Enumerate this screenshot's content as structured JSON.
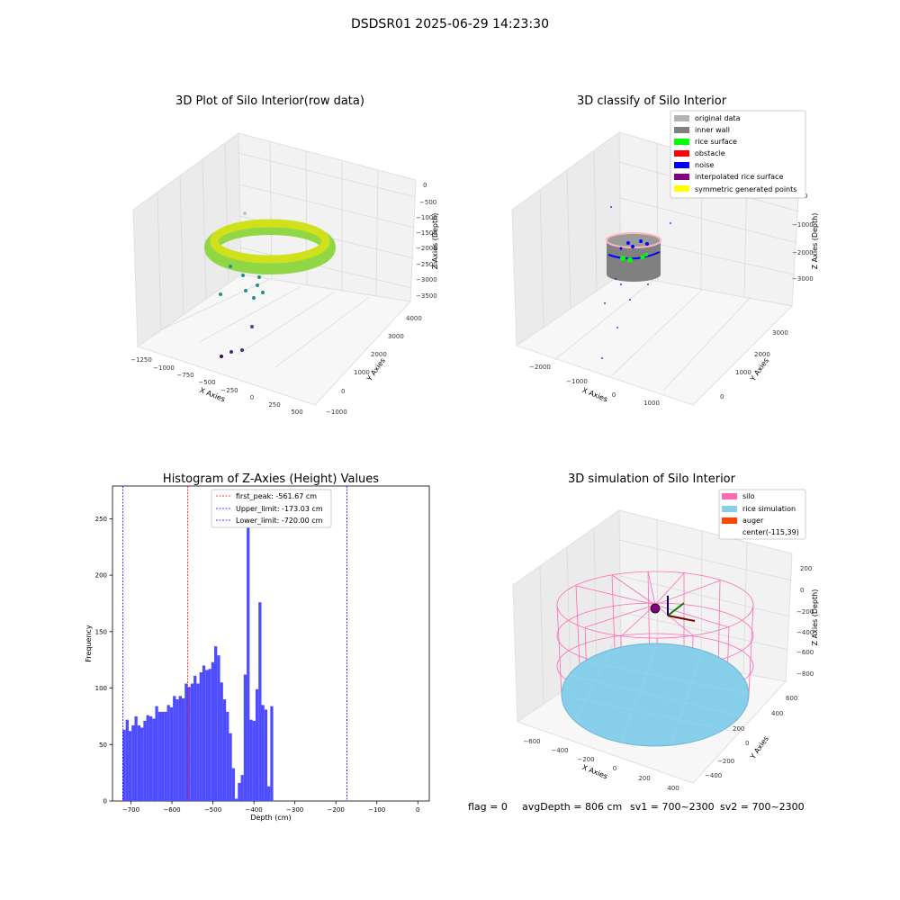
{
  "figure": {
    "suptitle": "DSDSR01 2025-06-29 14:23:30",
    "footer": {
      "flag": "flag = 0",
      "avg_depth": "avgDepth = 806 cm",
      "sv1": "sv1 = 700~2300",
      "sv2": "sv2 = 700~2300"
    }
  },
  "colors": {
    "original_data": "#b3b3b3",
    "inner_wall": "#808080",
    "rice_surface": "#00ff00",
    "obstacle": "#ff0000",
    "noise": "#0000ff",
    "interpolated_rice_surface": "#800080",
    "symmetric_generated_points": "#ffff00",
    "silo": "#ff69b4",
    "rice_simulation": "#87ceeb",
    "auger": "#ff4500",
    "histogram_bar": "#4d4dff"
  },
  "chart_data": [
    {
      "type": "scatter3d",
      "title": "3D Plot of Silo Interior(row data)",
      "xlabel": "X Axies",
      "ylabel": "Y Axies",
      "zlabel": "Z Axies (Depth)",
      "x_ticks": [
        "−1250",
        "−1000",
        "−750",
        "−500",
        "−250",
        "0",
        "250",
        "500"
      ],
      "y_ticks": [
        "−1000",
        "0",
        "1000",
        "2000",
        "3000",
        "4000"
      ],
      "z_ticks": [
        "0",
        "−500",
        "−1000",
        "−1500",
        "−2000",
        "−2500",
        "−3000",
        "−3500"
      ],
      "colormap": "viridis"
    },
    {
      "type": "scatter3d",
      "title": "3D classify of Silo Interior",
      "xlabel": "X Axies",
      "ylabel": "Y Axies",
      "zlabel": "Z Axies (Depth)",
      "x_ticks": [
        "−2000",
        "−1000",
        "0",
        "1000"
      ],
      "y_ticks": [
        "0",
        "1000",
        "2000",
        "3000"
      ],
      "z_ticks": [
        "0",
        "−1000",
        "−2000",
        "−3000"
      ],
      "legend_position": "top-right",
      "legend": [
        {
          "label": "original data",
          "color": "#b3b3b3"
        },
        {
          "label": "inner wall",
          "color": "#808080"
        },
        {
          "label": "rice surface",
          "color": "#00ff00"
        },
        {
          "label": "obstacle",
          "color": "#ff0000"
        },
        {
          "label": "noise",
          "color": "#0000ff"
        },
        {
          "label": "interpolated rice surface",
          "color": "#800080"
        },
        {
          "label": "symmetric generated points",
          "color": "#ffff00"
        }
      ]
    },
    {
      "type": "bar",
      "title": "Histogram of Z-Axies (Height) Values",
      "xlabel": "Depth (cm)",
      "ylabel": "Frequency",
      "xlim": [
        -745,
        28
      ],
      "ylim": [
        0,
        279
      ],
      "x_ticks": [
        -700,
        -600,
        -500,
        -400,
        -300,
        -200,
        -100,
        0
      ],
      "y_ticks": [
        0,
        50,
        100,
        150,
        200,
        250
      ],
      "bin_start": -720,
      "bin_width": 7.2,
      "values": [
        63,
        72,
        62,
        67,
        75,
        67,
        65,
        71,
        76,
        75,
        73,
        84,
        79,
        79,
        79,
        85,
        83,
        93,
        90,
        93,
        91,
        104,
        101,
        104,
        111,
        104,
        114,
        120,
        116,
        117,
        123,
        137,
        129,
        105,
        90,
        79,
        60,
        29,
        2,
        16,
        23,
        112,
        267,
        72,
        71,
        99,
        176,
        85,
        81,
        13,
        84
      ],
      "legend_position": "top-center",
      "lines": [
        {
          "label": "first_peak: -561.67 cm",
          "x": -561.67,
          "color": "#ff0000"
        },
        {
          "label": "Upper_limit: -173.03 cm",
          "x": -173.03,
          "color": "#0000ff"
        },
        {
          "label": "Lower_limit: -720.00 cm",
          "x": -720.0,
          "color": "#0000ff"
        }
      ]
    },
    {
      "type": "surface3d",
      "title": "3D simulation of Silo Interior",
      "xlabel": "X Axies",
      "ylabel": "Y Axies",
      "zlabel": "Z Axies (Depth)",
      "x_ticks": [
        "−600",
        "−400",
        "−200",
        "0",
        "200",
        "400"
      ],
      "y_ticks": [
        "−400",
        "−200",
        "0",
        "200",
        "400",
        "600"
      ],
      "z_ticks": [
        "200",
        "0",
        "−200",
        "−400",
        "−600",
        "−800"
      ],
      "legend_position": "top-right",
      "legend": [
        {
          "label": "silo",
          "color": "#ff69b4"
        },
        {
          "label": "rice simulation",
          "color": "#87ceeb"
        },
        {
          "label": "auger",
          "color": "#ff4500"
        },
        {
          "label": "center(-115,39)",
          "color": ""
        }
      ]
    }
  ]
}
